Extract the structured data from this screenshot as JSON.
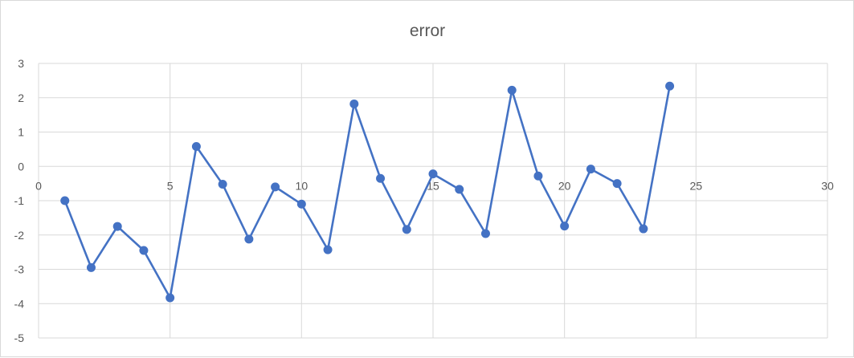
{
  "chart_data": {
    "type": "scatter",
    "title": "error",
    "xlim": [
      0,
      30
    ],
    "ylim": [
      -5,
      3
    ],
    "x_ticks": [
      0,
      5,
      10,
      15,
      20,
      25,
      30
    ],
    "y_ticks": [
      3,
      2,
      1,
      0,
      -1,
      -2,
      -3,
      -4,
      -5
    ],
    "grid": true,
    "legend": "none",
    "series": [
      {
        "color": "#4472c4",
        "marker": "circle",
        "line": "straight",
        "x": [
          1,
          2,
          3,
          4,
          5,
          6,
          7,
          8,
          9,
          10,
          11,
          12,
          13,
          14,
          15,
          16,
          17,
          18,
          19,
          20,
          21,
          22,
          23,
          24
        ],
        "y": [
          -1.0,
          -2.95,
          -1.75,
          -2.45,
          -3.83,
          0.58,
          -0.52,
          -2.12,
          -0.6,
          -1.1,
          -2.43,
          1.82,
          -0.35,
          -1.84,
          -0.22,
          -0.67,
          -1.96,
          2.22,
          -0.28,
          -1.74,
          -0.08,
          -0.5,
          -1.82,
          2.34
        ]
      }
    ]
  }
}
